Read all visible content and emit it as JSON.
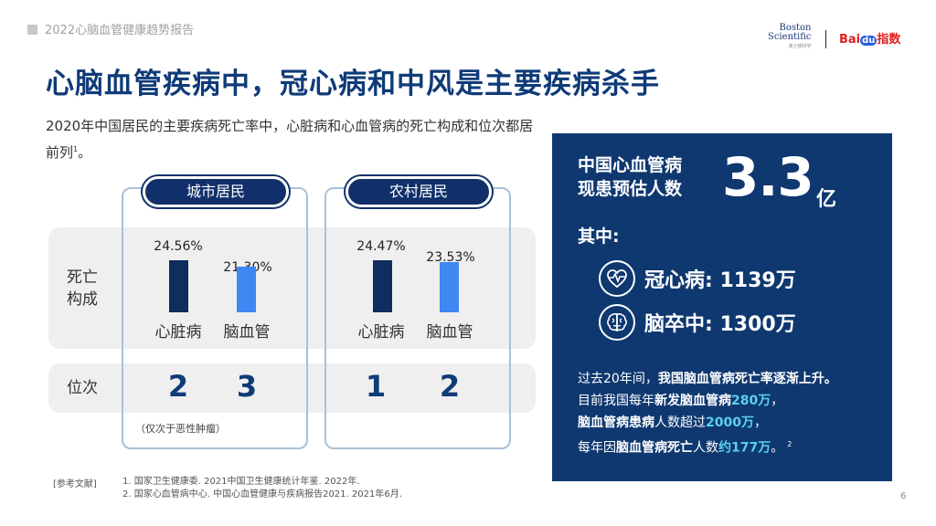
{
  "header": {
    "report_title": "2022心脑血管健康趋势报告"
  },
  "logos": {
    "boston_line1": "Boston",
    "boston_line2": "Scientific",
    "boston_sub": "波士顿科学",
    "baidu_bai": "Bai",
    "baidu_du": "du",
    "baidu_zhishu": "指数"
  },
  "title": "心脑血管疾病中，冠心病和中风是主要疾病杀手",
  "intro": {
    "text": "2020年中国居民的主要疾病死亡率中，心脏病和心血管病的死亡构成和位次都居前列",
    "sup": "1",
    "end": "。"
  },
  "row_labels": {
    "composition_line1": "死亡",
    "composition_line2": "构成",
    "rank": "位次"
  },
  "chart_data": [
    {
      "type": "bar",
      "title": "城市居民",
      "categories": [
        "心脏病",
        "脑血管"
      ],
      "values": [
        24.56,
        21.3
      ],
      "value_labels": [
        "24.56%",
        "21.30%"
      ],
      "ranks": [
        "2",
        "3"
      ],
      "colors": [
        "#0f2d5e",
        "#3f87f2"
      ],
      "ylim": [
        0,
        30
      ]
    },
    {
      "type": "bar",
      "title": "农村居民",
      "categories": [
        "心脏病",
        "脑血管"
      ],
      "values": [
        24.47,
        23.53
      ],
      "value_labels": [
        "24.47%",
        "23.53%"
      ],
      "ranks": [
        "1",
        "2"
      ],
      "colors": [
        "#0f2d5e",
        "#3f87f2"
      ],
      "ylim": [
        0,
        30
      ]
    }
  ],
  "note": "（仅次于恶性肿瘤）",
  "panel": {
    "title_line1": "中国心血管病",
    "title_line2": "现患预估人数",
    "big_number": "3.3",
    "unit": "亿",
    "among": "其中:",
    "items": [
      {
        "icon": "heart-pulse-icon",
        "label": "冠心病: 1139万"
      },
      {
        "icon": "brain-icon",
        "label": "脑卒中: 1300万"
      }
    ],
    "lines": {
      "l1_a": "过去20年间，",
      "l1_b": "我国脑血管病死亡率逐渐上升。",
      "l2_a": "目前我国每年",
      "l2_b": "新发脑血管病",
      "l2_c": "280万",
      "l2_d": "，",
      "l3_a": "脑血管病患病",
      "l3_b": "人数超过",
      "l3_c": "2000万",
      "l3_d": "，",
      "l4_a": "每年因",
      "l4_b": "脑血管病死亡",
      "l4_c": "人数",
      "l4_d": "约177万",
      "l4_e": "。",
      "l4_sup": "2"
    }
  },
  "references": {
    "label": "[参考文献]",
    "items": [
      "1. 国家卫生健康委. 2021中国卫生健康统计年鉴. 2022年.",
      "2. 国家心血管病中心. 中国心血管健康与疾病报告2021. 2021年6月."
    ]
  },
  "page_number": "6"
}
